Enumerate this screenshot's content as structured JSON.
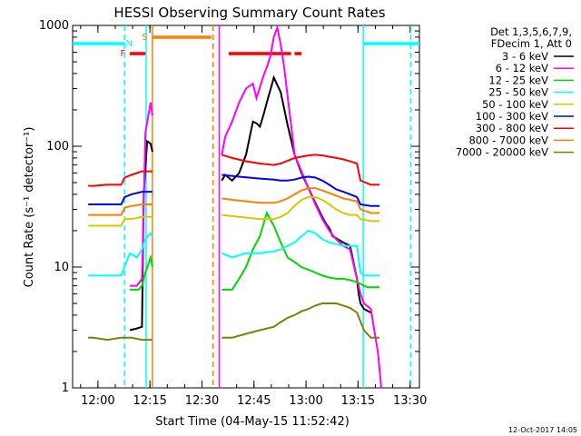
{
  "chart_data": {
    "type": "line",
    "title": "HESSI Observing Summary Count Rates",
    "xlabel": "Start Time (04-May-15 11:52:42)",
    "ylabel": "Count Rate (s⁻¹ detector⁻¹)",
    "footer": "12-Oct-2017 14:05",
    "x_unit": "minutes after 11:52:42",
    "xlim": [
      0,
      100
    ],
    "ylim": [
      1,
      1000
    ],
    "y_scale": "log",
    "grid": false,
    "legend_position": "right",
    "x_ticks": [
      {
        "label": "12:00",
        "value": 7.3
      },
      {
        "label": "12:15",
        "value": 22.3
      },
      {
        "label": "12:30",
        "value": 37.3
      },
      {
        "label": "12:45",
        "value": 52.3
      },
      {
        "label": "13:00",
        "value": 67.3
      },
      {
        "label": "13:15",
        "value": 82.3
      },
      {
        "label": "13:30",
        "value": 97.3
      }
    ],
    "y_ticks": [
      {
        "label": "1",
        "value": 1
      },
      {
        "label": "10",
        "value": 10
      },
      {
        "label": "100",
        "value": 100
      },
      {
        "label": "1000",
        "value": 1000
      }
    ],
    "legend_header": [
      "Det 1,3,5,6,7,9,",
      "FDecim 1, Att 0"
    ],
    "series": [
      {
        "name": "3 - 6 keV",
        "color": "#000000",
        "x": [
          0,
          15,
          16.5,
          18.5,
          20,
          20.5,
          21.5,
          22.5,
          23,
          36,
          36.5,
          42.5,
          43,
          44,
          46,
          48,
          50,
          52,
          53,
          54,
          55,
          56,
          57,
          58,
          60,
          62,
          64,
          66,
          68,
          70,
          72,
          73,
          74,
          75,
          78,
          80,
          82,
          82.5,
          83,
          84,
          86,
          100
        ],
        "y": [
          null,
          null,
          3,
          3.1,
          3.2,
          40,
          110,
          105,
          90,
          null,
          null,
          null,
          52,
          58,
          52,
          60,
          85,
          160,
          155,
          145,
          180,
          230,
          290,
          370,
          280,
          150,
          85,
          60,
          45,
          34,
          26,
          23,
          21,
          18,
          16,
          15,
          8,
          6,
          5,
          4.5,
          4.2,
          null
        ]
      },
      {
        "name": "6 - 12 keV",
        "color": "#ff00ff",
        "x": [
          0,
          15,
          16.5,
          18.5,
          20,
          21,
          22.5,
          23,
          36,
          42.5,
          43,
          44,
          46,
          48,
          50,
          52,
          53,
          55,
          56,
          57,
          58,
          59,
          60,
          61,
          62,
          63,
          64,
          66,
          68,
          70,
          72,
          74,
          76,
          78,
          80,
          82,
          83,
          84,
          86,
          87,
          88,
          89,
          100
        ],
        "y": [
          null,
          null,
          7,
          7,
          8,
          130,
          230,
          180,
          null,
          null,
          85,
          120,
          160,
          230,
          300,
          330,
          250,
          380,
          450,
          550,
          800,
          960,
          700,
          450,
          260,
          150,
          85,
          62,
          45,
          33,
          25,
          20,
          17,
          15,
          14,
          8,
          6,
          5,
          4.5,
          3,
          2,
          1,
          null
        ]
      },
      {
        "name": "12 - 25 keV",
        "color": "#00d800",
        "x": [
          0,
          15,
          16.5,
          19,
          20,
          21,
          22.5,
          23,
          36,
          42.5,
          43,
          46,
          48,
          50,
          52,
          54,
          56,
          58,
          60,
          62,
          64,
          66,
          68,
          70,
          72,
          74,
          76,
          78,
          80,
          82,
          84,
          85,
          87,
          88.5,
          89,
          100
        ],
        "y": [
          null,
          null,
          6.5,
          6.5,
          7,
          9,
          12,
          10,
          null,
          null,
          6.5,
          6.5,
          8,
          10,
          14,
          18,
          28,
          22,
          16,
          12,
          11,
          10,
          9.5,
          9,
          8.5,
          8.2,
          8,
          8,
          7.8,
          7.5,
          7,
          6.8,
          6.8,
          6.8,
          null,
          null
        ]
      },
      {
        "name": "25 - 50 keV",
        "color": "#00ffff",
        "x": [
          0,
          4.5,
          6,
          10,
          14,
          16.5,
          18.5,
          20,
          21,
          22.5,
          23,
          36,
          42.5,
          43,
          46,
          50,
          54,
          58,
          60,
          62,
          64,
          66,
          68,
          70,
          72,
          74,
          76,
          78,
          80,
          82,
          83,
          84,
          86,
          88,
          88.5,
          89,
          100
        ],
        "y": [
          null,
          8.5,
          8.5,
          8.5,
          8.5,
          13,
          12,
          14,
          17,
          19,
          18,
          null,
          null,
          13,
          12,
          13,
          13,
          13.5,
          14,
          15,
          16,
          18,
          20,
          19,
          17,
          16,
          15.5,
          15,
          15,
          15,
          9,
          8.5,
          8.5,
          8.5,
          8.5,
          null,
          null
        ]
      },
      {
        "name": "50 - 100 keV",
        "color": "#d8c800",
        "x": [
          0,
          4.5,
          6,
          10,
          14,
          15,
          17,
          20,
          22.5,
          23,
          36,
          42.5,
          43,
          48,
          54,
          58,
          60,
          62,
          64,
          66,
          68,
          70,
          72,
          74,
          76,
          78,
          80,
          82,
          83,
          86,
          88.5,
          89,
          100
        ],
        "y": [
          null,
          22,
          22,
          22,
          22,
          25,
          25,
          26,
          26,
          26,
          null,
          null,
          27,
          26,
          25,
          25,
          26,
          28,
          32,
          36,
          38,
          38,
          36,
          33,
          30,
          28,
          27,
          27,
          25,
          24,
          24,
          null,
          null
        ]
      },
      {
        "name": "100 - 300 keV",
        "color": "#0000ff",
        "x": [
          0,
          4.5,
          6,
          10,
          14,
          15,
          17,
          20,
          22.5,
          23,
          36,
          42.5,
          43,
          48,
          54,
          58,
          60,
          62,
          64,
          66,
          68,
          70,
          72,
          74,
          76,
          78,
          80,
          82,
          83,
          86,
          88.5,
          89,
          100
        ],
        "y": [
          null,
          33,
          33,
          33,
          33,
          38,
          40,
          42,
          42,
          42,
          null,
          null,
          58,
          56,
          54,
          53,
          52,
          52,
          53,
          55,
          56,
          55,
          52,
          48,
          44,
          42,
          40,
          38,
          33,
          32,
          32,
          null,
          null
        ]
      },
      {
        "name": "300 - 800 keV",
        "color": "#ff0000",
        "x": [
          0,
          4.5,
          6,
          10,
          14,
          15,
          17,
          20,
          22.5,
          23,
          36,
          42.5,
          43,
          46,
          50,
          54,
          58,
          60,
          62,
          64,
          66,
          68,
          70,
          72,
          74,
          76,
          78,
          80,
          82,
          83,
          86,
          88.5,
          89,
          100
        ],
        "y": [
          null,
          47,
          47,
          48,
          48,
          55,
          58,
          62,
          62,
          62,
          null,
          null,
          85,
          80,
          75,
          72,
          70,
          72,
          76,
          80,
          82,
          84,
          85,
          84,
          82,
          80,
          78,
          75,
          72,
          52,
          48,
          48,
          null,
          null
        ]
      },
      {
        "name": "800 - 7000 keV",
        "color": "#ff8000",
        "x": [
          0,
          4.5,
          6,
          10,
          14,
          15,
          17,
          20,
          22.5,
          23,
          36,
          42.5,
          43,
          46,
          50,
          54,
          58,
          60,
          62,
          64,
          66,
          68,
          70,
          72,
          74,
          76,
          78,
          80,
          82,
          83,
          86,
          88.5,
          89,
          100
        ],
        "y": [
          null,
          27,
          27,
          27,
          27,
          31,
          32,
          33,
          33,
          33,
          null,
          null,
          37,
          36,
          35,
          34,
          34,
          35,
          37,
          40,
          43,
          45,
          45,
          43,
          41,
          39,
          37,
          36,
          35,
          30,
          28,
          28,
          null,
          null
        ]
      },
      {
        "name": "7000 - 20000 keV",
        "color": "#808000",
        "x": [
          0,
          4.5,
          6,
          10,
          14,
          17,
          20,
          22.5,
          23,
          36,
          42.5,
          43,
          46,
          50,
          54,
          58,
          60,
          62,
          64,
          66,
          68,
          70,
          72,
          74,
          76,
          78,
          80,
          82,
          84,
          86,
          88.5,
          89,
          100
        ],
        "y": [
          null,
          2.6,
          2.6,
          2.5,
          2.6,
          2.6,
          2.5,
          2.5,
          2.5,
          null,
          null,
          2.6,
          2.6,
          2.8,
          3,
          3.2,
          3.5,
          3.8,
          4,
          4.3,
          4.5,
          4.8,
          5,
          5,
          5,
          4.8,
          4.6,
          4.2,
          3,
          2.6,
          2.6,
          null,
          null
        ]
      }
    ],
    "flags": [
      {
        "label": "F",
        "color": "#ff0000",
        "intervals": [
          [
            16.5,
            21
          ],
          [
            45,
            63
          ],
          [
            64,
            66
          ]
        ]
      },
      {
        "label": "S",
        "color": "#ff8000",
        "intervals": [
          [
            23,
            40
          ]
        ]
      },
      {
        "label": "N",
        "color": "#00ffff",
        "intervals": [
          [
            0,
            15
          ],
          [
            84,
            100
          ]
        ]
      }
    ],
    "vertical_markers": [
      {
        "x": 15,
        "color": "#00ffff",
        "style": "dashed"
      },
      {
        "x": 21.2,
        "color": "#00ffff",
        "style": "solid"
      },
      {
        "x": 23,
        "color": "#ff8000",
        "style": "solid"
      },
      {
        "x": 40.5,
        "color": "#ff8000",
        "style": "dashed"
      },
      {
        "x": 42.3,
        "color": "#ff00ff",
        "style": "solid"
      },
      {
        "x": 83.8,
        "color": "#00ffff",
        "style": "solid"
      },
      {
        "x": 97.5,
        "color": "#00ffff",
        "style": "dashed"
      }
    ]
  }
}
